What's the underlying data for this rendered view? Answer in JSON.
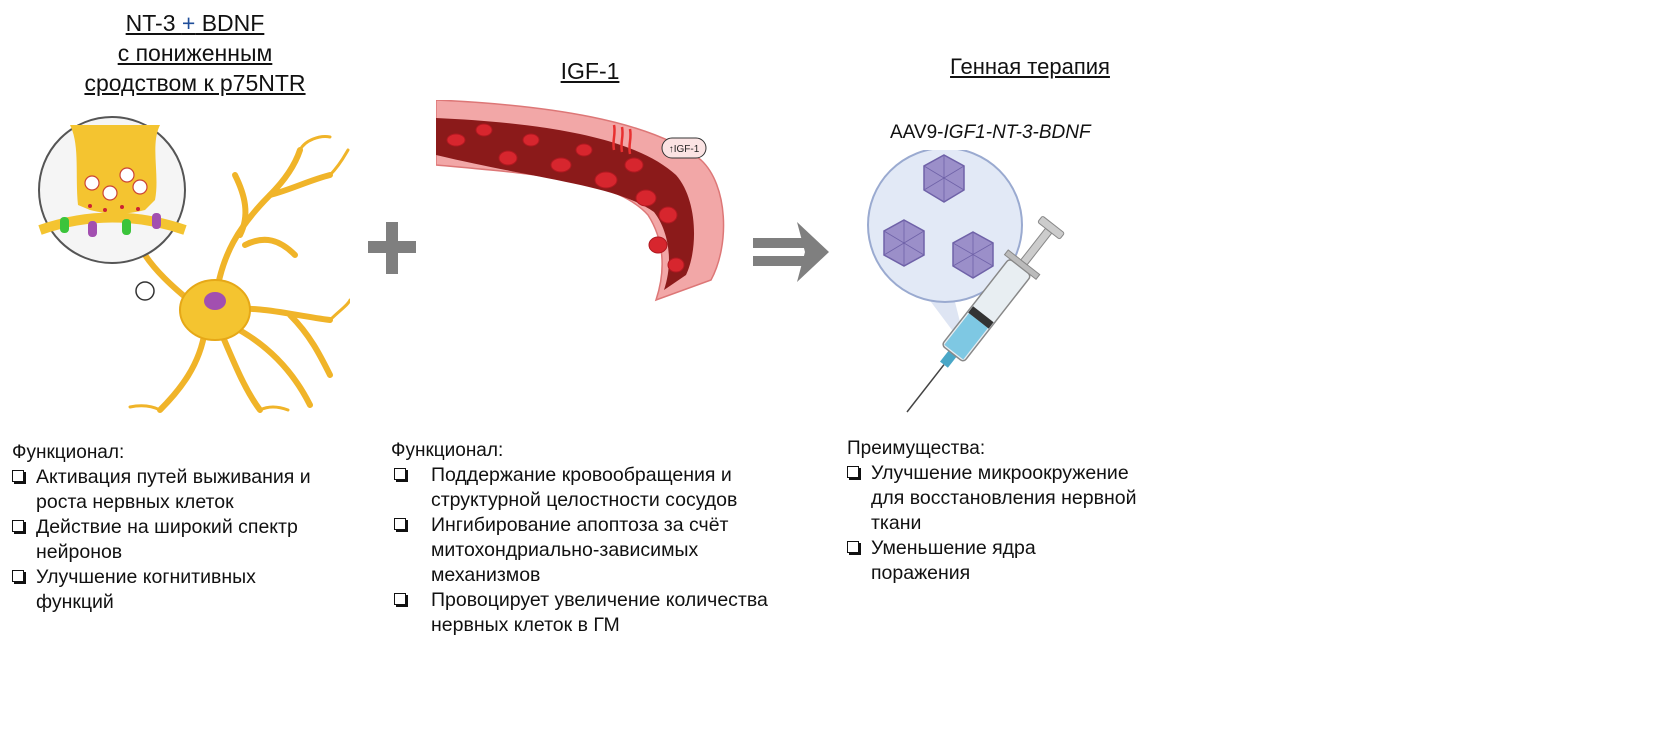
{
  "panel1": {
    "title_part1": "NT-3 ",
    "title_plus": "+",
    "title_part2": " BDNF",
    "title_line2": "с пониженным",
    "title_line3": "сродством к  p75NTR"
  },
  "panel2": {
    "title": "IGF-1",
    "badge": "↑IGF-1"
  },
  "panel3": {
    "title": "Генная терапия",
    "vector_prefix": "AAV9-",
    "vector_italic": "IGF1-NT-3-BDNF"
  },
  "list1": {
    "heading": "Функционал:",
    "items": [
      [
        "Активация путей выживания и",
        "роста нервных клеток"
      ],
      [
        "Действие на широкий спектр",
        "нейронов"
      ],
      [
        "Улучшение когнитивных",
        "функций"
      ]
    ]
  },
  "list2": {
    "heading": "Функционал:",
    "items": [
      [
        "Поддержание кровообращения и",
        "структурной целостности сосудов"
      ],
      [
        "Ингибирование апоптоза за счёт",
        "митохондриально-зависимых",
        "механизмов"
      ],
      [
        "Провоцирует увеличение количества",
        "нервных клеток в ГМ"
      ]
    ]
  },
  "list3": {
    "heading": "Преимущества:",
    "items": [
      [
        "Улучшение микроокружение",
        "для восстановления нервной",
        "ткани"
      ],
      [
        "Уменьшение ядра",
        "поражения"
      ]
    ]
  },
  "colors": {
    "neuron": "#f4c430",
    "vessel_wall": "#f2a7a7",
    "blood": "#8b1a1a",
    "arrow_gray": "#7f7f7f",
    "virus": "#9b8fc9",
    "syringe_fluid": "#7ec8e3"
  }
}
